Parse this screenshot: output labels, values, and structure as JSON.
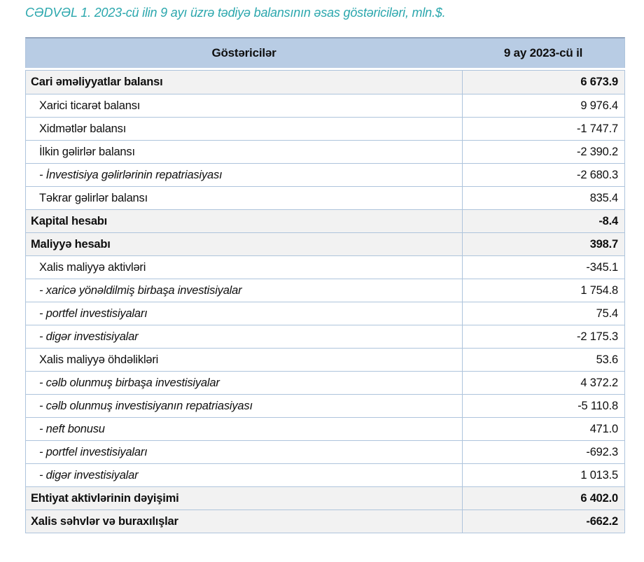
{
  "page": {
    "caption": "CƏDVƏL 1. 2023-cü ilin 9 ayı üzrə tədiyə balansının əsas göstəriciləri, mln.$."
  },
  "colors": {
    "caption_teal": "#2ba7ad",
    "header_bg": "#b8cce4",
    "section_row_bg": "#f2f2f2",
    "grid_line": "#aec4dc"
  },
  "table": {
    "columns": [
      "Göstəricilər",
      "9 ay 2023-cü il"
    ],
    "rows": [
      {
        "label": "Cari əməliyyatlar balansı",
        "value": "6 673.9",
        "style": "section"
      },
      {
        "label": "Xarici ticarət balansı",
        "value": "9 976.4",
        "style": "sub"
      },
      {
        "label": "Xidmətlər balansı",
        "value": "-1 747.7",
        "style": "sub"
      },
      {
        "label": "İlkin gəlirlər balansı",
        "value": "-2 390.2",
        "style": "sub"
      },
      {
        "label": "- İnvestisiya gəlirlərinin repatriasiyası",
        "value": "-2 680.3",
        "style": "detail"
      },
      {
        "label": "Təkrar gəlirlər balansı",
        "value": "835.4",
        "style": "sub"
      },
      {
        "label": "Kapital hesabı",
        "value": "-8.4",
        "style": "section"
      },
      {
        "label": "Maliyyə hesabı",
        "value": "398.7",
        "style": "section"
      },
      {
        "label": "Xalis maliyyə aktivləri",
        "value": "-345.1",
        "style": "sub"
      },
      {
        "label": "- xaricə yönəldilmiş birbaşa investisiyalar",
        "value": "1 754.8",
        "style": "detail"
      },
      {
        "label": "- portfel investisiyaları",
        "value": "75.4",
        "style": "detail"
      },
      {
        "label": "- digər investisiyalar",
        "value": "-2 175.3",
        "style": "detail"
      },
      {
        "label": "Xalis maliyyə öhdəlikləri",
        "value": "53.6",
        "style": "sub"
      },
      {
        "label": "- cəlb olunmuş birbaşa investisiyalar",
        "value": "4 372.2",
        "style": "detail"
      },
      {
        "label": "- cəlb olunmuş investisiyanın repatriasiyası",
        "value": "-5 110.8",
        "style": "detail"
      },
      {
        "label": "- neft bonusu",
        "value": "471.0",
        "style": "detail"
      },
      {
        "label": "- portfel investisiyaları",
        "value": "-692.3",
        "style": "detail"
      },
      {
        "label": "- digər investisiyalar",
        "value": "1 013.5",
        "style": "detail"
      },
      {
        "label": "Ehtiyat aktivlərinin dəyişimi",
        "value": "6 402.0",
        "style": "section"
      },
      {
        "label": "Xalis səhvlər və buraxılışlar",
        "value": "-662.2",
        "style": "section"
      }
    ]
  }
}
